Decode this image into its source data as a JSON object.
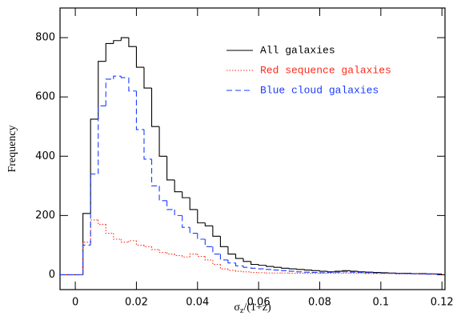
{
  "chart_data": {
    "type": "histogram",
    "xlabel": {
      "symbol": "σ",
      "subscript": "z",
      "rest": "/(1+z)"
    },
    "ylabel": "Frequency",
    "bins": [
      -0.005,
      -0.0025,
      0,
      0.0025,
      0.005,
      0.0075,
      0.01,
      0.0125,
      0.015,
      0.0175,
      0.02,
      0.0225,
      0.025,
      0.0275,
      0.03,
      0.0325,
      0.035,
      0.0375,
      0.04,
      0.0425,
      0.045,
      0.0475,
      0.05,
      0.0525,
      0.055,
      0.0575,
      0.06,
      0.0625,
      0.065,
      0.0675,
      0.07,
      0.0725,
      0.075,
      0.0775,
      0.08,
      0.0825,
      0.085,
      0.0875,
      0.09,
      0.0925,
      0.095,
      0.0975,
      0.1,
      0.1025,
      0.105,
      0.1075,
      0.11,
      0.1125,
      0.115,
      0.1175,
      0.12
    ],
    "series": [
      {
        "name": "All galaxies",
        "color": "#000000",
        "dash": "solid",
        "values": [
          0,
          0,
          0,
          207,
          525,
          720,
          780,
          790,
          800,
          770,
          700,
          630,
          500,
          400,
          320,
          280,
          260,
          220,
          175,
          165,
          130,
          95,
          70,
          55,
          45,
          35,
          32,
          28,
          25,
          22,
          20,
          18,
          16,
          14,
          12,
          10,
          12,
          14,
          12,
          10,
          9,
          8,
          7,
          6,
          5,
          5,
          4,
          4,
          3,
          3
        ]
      },
      {
        "name": "Red sequence galaxies",
        "color": "#ff2a1a",
        "dash": "dotted",
        "values": [
          0,
          0,
          0,
          110,
          185,
          170,
          140,
          120,
          110,
          115,
          100,
          95,
          85,
          75,
          70,
          65,
          60,
          70,
          62,
          50,
          35,
          20,
          15,
          12,
          10,
          8,
          7,
          6,
          6,
          6,
          5,
          5,
          5,
          5,
          5,
          5,
          5,
          5,
          5,
          5,
          4,
          4,
          4,
          4,
          3,
          3,
          3,
          2,
          2,
          2
        ]
      },
      {
        "name": "Blue cloud galaxies",
        "color": "#1a3cff",
        "dash": "dashed",
        "values": [
          0,
          0,
          0,
          100,
          340,
          570,
          660,
          670,
          665,
          620,
          490,
          390,
          300,
          250,
          220,
          200,
          160,
          140,
          120,
          95,
          70,
          50,
          40,
          30,
          25,
          22,
          20,
          18,
          16,
          14,
          12,
          10,
          9,
          8,
          7,
          8,
          9,
          10,
          9,
          8,
          7,
          6,
          5,
          5,
          4,
          4,
          3,
          3,
          2,
          2
        ]
      }
    ],
    "xlim": [
      -0.005,
      0.121
    ],
    "ylim": [
      -50,
      900
    ],
    "xticks": [
      0,
      0.02,
      0.04,
      0.06,
      0.08,
      0.1,
      0.12
    ],
    "yticks": [
      0,
      200,
      400,
      600,
      800
    ],
    "legend": "upper-right"
  }
}
